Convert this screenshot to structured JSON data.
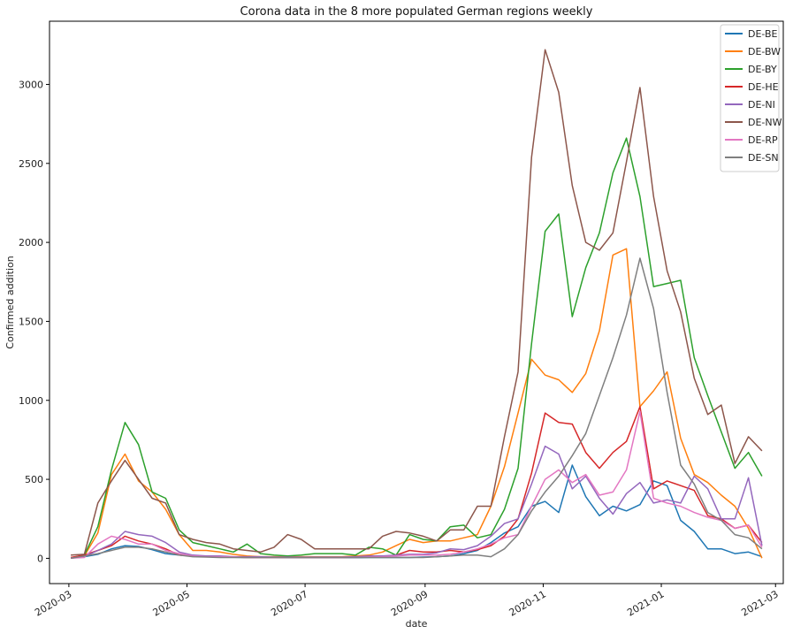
{
  "chart_data": {
    "type": "line",
    "title": "Corona data in the 8 more populated German regions weekly",
    "xlabel": "date",
    "ylabel": "Confirmed addition",
    "xlim": [
      "2020-02-20",
      "2021-03-05"
    ],
    "ylim": [
      -160,
      3400
    ],
    "x_ticks": [
      "2020-03",
      "2020-05",
      "2020-07",
      "2020-09",
      "2020-11",
      "2021-01",
      "2021-03"
    ],
    "y_ticks": [
      0,
      500,
      1000,
      1500,
      2000,
      2500,
      3000
    ],
    "grid": false,
    "legend_position": "top-right",
    "x": [
      "2020-03-02",
      "2020-03-09",
      "2020-03-16",
      "2020-03-23",
      "2020-03-30",
      "2020-04-06",
      "2020-04-13",
      "2020-04-20",
      "2020-04-27",
      "2020-05-04",
      "2020-05-11",
      "2020-05-18",
      "2020-05-25",
      "2020-06-01",
      "2020-06-08",
      "2020-06-15",
      "2020-06-22",
      "2020-06-29",
      "2020-07-06",
      "2020-07-13",
      "2020-07-20",
      "2020-07-27",
      "2020-08-03",
      "2020-08-10",
      "2020-08-17",
      "2020-08-24",
      "2020-08-31",
      "2020-09-07",
      "2020-09-14",
      "2020-09-21",
      "2020-09-28",
      "2020-10-05",
      "2020-10-12",
      "2020-10-19",
      "2020-10-26",
      "2020-11-02",
      "2020-11-09",
      "2020-11-16",
      "2020-11-23",
      "2020-11-30",
      "2020-12-07",
      "2020-12-14",
      "2020-12-21",
      "2020-12-28",
      "2021-01-04",
      "2021-01-11",
      "2021-01-18",
      "2021-01-25",
      "2021-02-01",
      "2021-02-08",
      "2021-02-15",
      "2021-02-22"
    ],
    "series": [
      {
        "name": "DE-BE",
        "color": "#1f77b4",
        "values": [
          2,
          10,
          25,
          60,
          80,
          75,
          55,
          30,
          20,
          15,
          10,
          8,
          6,
          5,
          5,
          5,
          4,
          4,
          4,
          4,
          4,
          4,
          5,
          5,
          5,
          5,
          8,
          10,
          15,
          30,
          50,
          100,
          160,
          200,
          330,
          360,
          290,
          590,
          390,
          270,
          330,
          300,
          340,
          490,
          460,
          240,
          170,
          60,
          60,
          30,
          40,
          10
        ]
      },
      {
        "name": "DE-BW",
        "color": "#ff7f0e",
        "values": [
          5,
          15,
          160,
          530,
          660,
          490,
          420,
          310,
          150,
          50,
          50,
          40,
          25,
          15,
          10,
          10,
          10,
          10,
          10,
          10,
          10,
          15,
          20,
          40,
          80,
          120,
          100,
          110,
          110,
          130,
          150,
          330,
          580,
          920,
          1260,
          1160,
          1130,
          1050,
          1170,
          1440,
          1920,
          1960,
          960,
          1060,
          1180,
          760,
          530,
          480,
          400,
          330,
          190,
          1
        ]
      },
      {
        "name": "DE-BY",
        "color": "#2ca02c",
        "values": [
          3,
          20,
          200,
          560,
          860,
          720,
          420,
          380,
          180,
          100,
          80,
          60,
          40,
          90,
          30,
          20,
          15,
          20,
          30,
          30,
          30,
          20,
          70,
          60,
          20,
          150,
          120,
          110,
          200,
          210,
          130,
          150,
          310,
          570,
          1360,
          2070,
          2180,
          1530,
          1840,
          2060,
          2440,
          2660,
          2290,
          1720,
          1740,
          1760,
          1270,
          1030,
          800,
          570,
          670,
          520
        ]
      },
      {
        "name": "DE-HE",
        "color": "#d62728",
        "values": [
          5,
          20,
          50,
          80,
          140,
          110,
          90,
          60,
          20,
          15,
          10,
          10,
          8,
          5,
          5,
          5,
          5,
          5,
          5,
          5,
          5,
          8,
          10,
          10,
          20,
          50,
          40,
          40,
          50,
          40,
          55,
          80,
          140,
          250,
          540,
          920,
          860,
          850,
          670,
          570,
          670,
          740,
          960,
          440,
          490,
          460,
          430,
          270,
          250,
          190,
          210,
          100
        ]
      },
      {
        "name": "DE-NI",
        "color": "#9467bd",
        "values": [
          2,
          10,
          50,
          90,
          170,
          150,
          140,
          100,
          40,
          20,
          15,
          15,
          10,
          10,
          10,
          8,
          8,
          8,
          8,
          8,
          8,
          10,
          15,
          15,
          20,
          25,
          25,
          35,
          60,
          55,
          80,
          140,
          220,
          250,
          470,
          710,
          660,
          440,
          520,
          380,
          280,
          410,
          480,
          350,
          370,
          350,
          520,
          440,
          250,
          250,
          510,
          80
        ]
      },
      {
        "name": "DE-NW",
        "color": "#8c564b",
        "values": [
          20,
          25,
          350,
          490,
          620,
          500,
          380,
          350,
          150,
          120,
          100,
          90,
          60,
          50,
          40,
          70,
          150,
          120,
          60,
          60,
          60,
          60,
          60,
          140,
          170,
          160,
          140,
          110,
          180,
          180,
          330,
          330,
          770,
          1180,
          2540,
          3220,
          2950,
          2360,
          2000,
          1950,
          2060,
          2510,
          2980,
          2290,
          1820,
          1560,
          1140,
          910,
          970,
          600,
          770,
          680
        ]
      },
      {
        "name": "DE-RP",
        "color": "#e377c2",
        "values": [
          1,
          5,
          90,
          140,
          120,
          90,
          90,
          50,
          30,
          15,
          10,
          10,
          8,
          5,
          5,
          5,
          5,
          5,
          5,
          5,
          5,
          5,
          8,
          10,
          15,
          20,
          20,
          20,
          25,
          40,
          60,
          90,
          130,
          150,
          330,
          500,
          560,
          480,
          530,
          400,
          420,
          560,
          930,
          380,
          350,
          330,
          290,
          260,
          240,
          190,
          210,
          70
        ]
      },
      {
        "name": "DE-SN",
        "color": "#7f7f7f",
        "values": [
          0,
          15,
          30,
          50,
          70,
          70,
          60,
          40,
          20,
          10,
          8,
          5,
          5,
          5,
          5,
          5,
          5,
          5,
          5,
          5,
          5,
          5,
          5,
          5,
          5,
          5,
          5,
          10,
          15,
          20,
          20,
          10,
          60,
          150,
          300,
          420,
          520,
          650,
          790,
          1030,
          1270,
          1540,
          1900,
          1580,
          1050,
          590,
          470,
          290,
          240,
          150,
          130,
          60
        ]
      }
    ]
  }
}
